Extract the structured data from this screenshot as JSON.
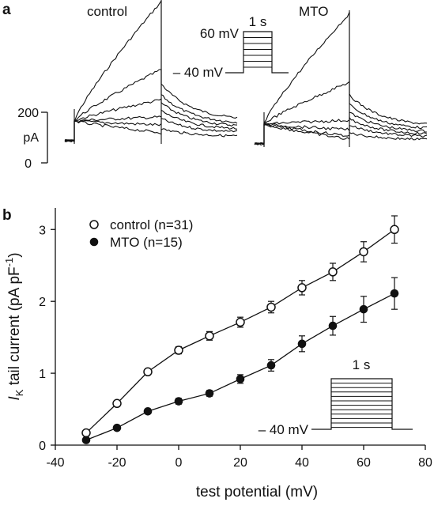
{
  "panel_a": {
    "letter": "a",
    "control_label": "control",
    "mto_label": "MTO",
    "scale_top": "200",
    "scale_unit": "pA",
    "scale_bottom": "0",
    "protocol": {
      "duration": "1 s",
      "top_voltage": "60 mV",
      "holding": "– 40 mV"
    }
  },
  "panel_b": {
    "letter": "b",
    "protocol": {
      "duration": "1 s",
      "holding": "– 40 mV"
    }
  },
  "chart_data": {
    "type": "line",
    "xlabel": "test potential (mV)",
    "ylabel_main": "I",
    "ylabel_sub": "K",
    "ylabel_rest": " tail current (pA pF",
    "ylabel_exp": "-1",
    "ylabel_close": ")",
    "xlim": [
      -40,
      80
    ],
    "ylim": [
      0,
      3.3
    ],
    "xticks": [
      -40,
      -20,
      0,
      20,
      40,
      60,
      80
    ],
    "yticks": [
      0,
      1,
      2,
      3
    ],
    "legend_position": "top-left",
    "x": [
      -30,
      -20,
      -10,
      0,
      10,
      20,
      30,
      40,
      50,
      60,
      70
    ],
    "series": [
      {
        "name": "control (n=31)",
        "marker": "open-circle",
        "values": [
          0.17,
          0.58,
          1.02,
          1.32,
          1.52,
          1.71,
          1.92,
          2.19,
          2.41,
          2.69,
          3.0
        ],
        "errors": [
          0.03,
          0.03,
          0.04,
          0.05,
          0.06,
          0.07,
          0.08,
          0.1,
          0.12,
          0.14,
          0.19
        ]
      },
      {
        "name": "MTO (n=15)",
        "marker": "filled-circle",
        "values": [
          0.07,
          0.24,
          0.47,
          0.61,
          0.72,
          0.92,
          1.11,
          1.41,
          1.66,
          1.89,
          2.11
        ],
        "errors": [
          0.02,
          0.03,
          0.03,
          0.04,
          0.04,
          0.06,
          0.08,
          0.11,
          0.13,
          0.18,
          0.22
        ]
      }
    ]
  }
}
